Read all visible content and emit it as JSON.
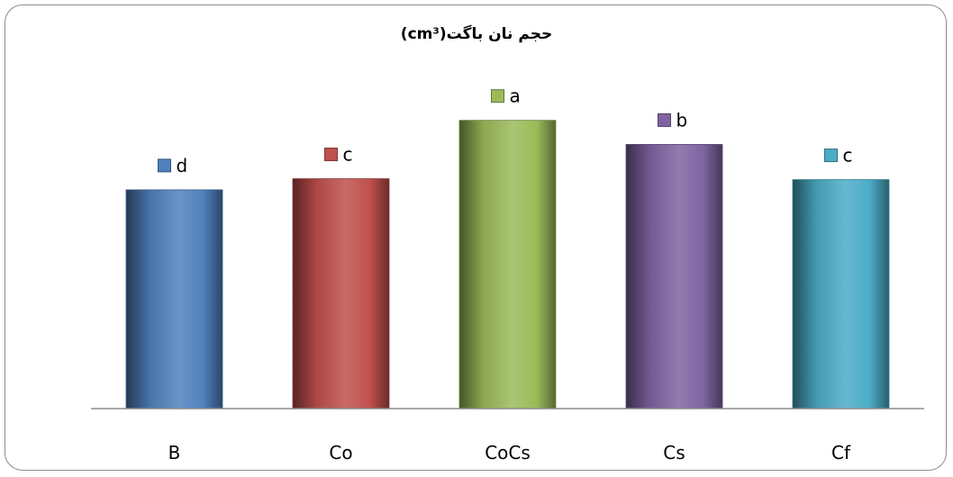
{
  "chart_data": {
    "type": "bar",
    "title": "حجم نان باگت(cm³)",
    "categories": [
      "B",
      "Co",
      "CoCs",
      "Cs",
      "Cf"
    ],
    "values": [
      236,
      248,
      311,
      285,
      247
    ],
    "data_labels": [
      "d",
      "c",
      "a",
      "b",
      "c"
    ],
    "colors": [
      "#4f81bd",
      "#c0504d",
      "#9bbb59",
      "#8064a2",
      "#4bacc6"
    ],
    "ylim": [
      0,
      400
    ],
    "grid": false,
    "xlabel": "",
    "ylabel": ""
  }
}
